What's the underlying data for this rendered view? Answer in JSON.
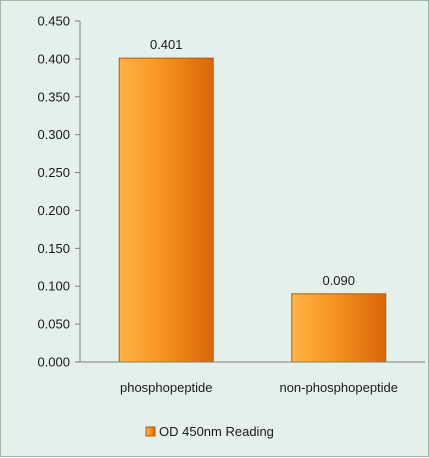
{
  "chart_data": {
    "type": "bar",
    "categories": [
      "phosphopeptide",
      "non-phosphopeptide"
    ],
    "series": [
      {
        "name": "OD 450nm Reading",
        "values": [
          0.401,
          0.09
        ],
        "data_labels": [
          "0.401",
          "0.090"
        ]
      }
    ],
    "ylim": [
      0,
      0.45
    ],
    "yticks": [
      0.0,
      0.05,
      0.1,
      0.15,
      0.2,
      0.25,
      0.3,
      0.35,
      0.4,
      0.45
    ],
    "ytick_labels": [
      "0.000",
      "0.050",
      "0.100",
      "0.150",
      "0.200",
      "0.250",
      "0.300",
      "0.350",
      "0.400",
      "0.450"
    ],
    "title": "",
    "xlabel": "",
    "ylabel": "",
    "grid": false,
    "legend_position": "bottom",
    "colors": {
      "bar_light": "#ffb347",
      "bar_mid": "#f7941d",
      "bar_dark": "#d9660a",
      "bar_edge": "#b85a10",
      "background": "#e3f1ea",
      "axis": "#7f7f7f"
    }
  }
}
